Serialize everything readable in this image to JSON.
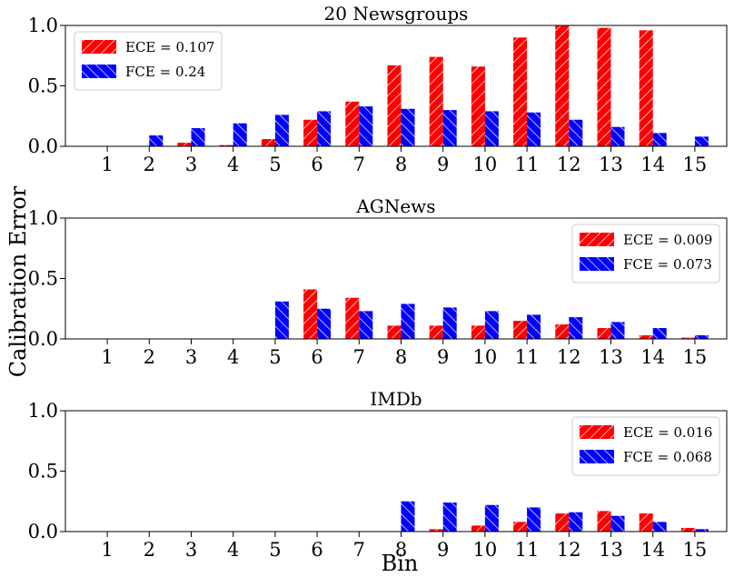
{
  "figure": {
    "ylabel": "Calibration Error",
    "xlabel": "Bin"
  },
  "colors": {
    "ece": "#ff0000",
    "fce": "#0000ff",
    "hatch": "#ffffff",
    "axis": "#000000"
  },
  "chart_data": [
    {
      "type": "bar",
      "title": "20 Newsgroups",
      "categories": [
        "1",
        "2",
        "3",
        "4",
        "5",
        "6",
        "7",
        "8",
        "9",
        "10",
        "11",
        "12",
        "13",
        "14",
        "15"
      ],
      "ylim": [
        0,
        1.0
      ],
      "yticks": [
        "0.0",
        "0.5",
        "1.0"
      ],
      "legend_position": "top-left",
      "series": [
        {
          "name": "ECE = 0.107",
          "values": [
            0,
            0,
            0.03,
            0.01,
            0.06,
            0.22,
            0.37,
            0.67,
            0.74,
            0.66,
            0.9,
            1.0,
            0.98,
            0.96,
            0
          ]
        },
        {
          "name": "FCE = 0.24",
          "values": [
            0,
            0.09,
            0.15,
            0.19,
            0.26,
            0.29,
            0.33,
            0.31,
            0.3,
            0.29,
            0.28,
            0.22,
            0.16,
            0.11,
            0.08
          ]
        }
      ]
    },
    {
      "type": "bar",
      "title": "AGNews",
      "categories": [
        "1",
        "2",
        "3",
        "4",
        "5",
        "6",
        "7",
        "8",
        "9",
        "10",
        "11",
        "12",
        "13",
        "14",
        "15"
      ],
      "ylim": [
        0,
        1.0
      ],
      "yticks": [
        "0.0",
        "0.5",
        "1.0"
      ],
      "legend_position": "top-right",
      "series": [
        {
          "name": "ECE = 0.009",
          "values": [
            0,
            0,
            0,
            0,
            0,
            0.41,
            0.34,
            0.11,
            0.11,
            0.11,
            0.15,
            0.12,
            0.09,
            0.03,
            0.01
          ]
        },
        {
          "name": "FCE = 0.073",
          "values": [
            0,
            0,
            0,
            0,
            0.31,
            0.25,
            0.23,
            0.29,
            0.26,
            0.23,
            0.2,
            0.18,
            0.14,
            0.09,
            0.03
          ]
        }
      ]
    },
    {
      "type": "bar",
      "title": "IMDb",
      "categories": [
        "1",
        "2",
        "3",
        "4",
        "5",
        "6",
        "7",
        "8",
        "9",
        "10",
        "11",
        "12",
        "13",
        "14",
        "15"
      ],
      "ylim": [
        0,
        1.0
      ],
      "yticks": [
        "0.0",
        "0.5",
        "1.0"
      ],
      "legend_position": "top-right",
      "series": [
        {
          "name": "ECE = 0.016",
          "values": [
            0,
            0,
            0,
            0,
            0,
            0,
            0,
            0,
            0.02,
            0.05,
            0.08,
            0.15,
            0.17,
            0.15,
            0.03
          ]
        },
        {
          "name": "FCE = 0.068",
          "values": [
            0,
            0,
            0,
            0,
            0,
            0,
            0,
            0.25,
            0.24,
            0.22,
            0.2,
            0.16,
            0.13,
            0.08,
            0.02
          ]
        }
      ]
    }
  ]
}
